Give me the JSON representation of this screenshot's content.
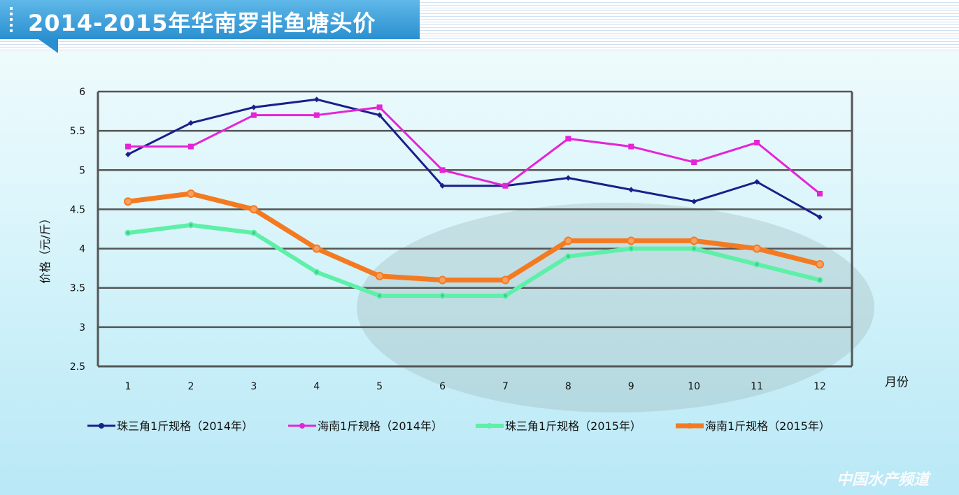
{
  "title": "2014-2015年华南罗非鱼塘头价",
  "watermark": {
    "name": "中国水产频道",
    "url": "www.fishfirst.cn"
  },
  "colors": {
    "s1": "#1a1f8a",
    "s2": "#e524d6",
    "s3": "#5ef0a8",
    "s4": "#f47a22"
  },
  "chart_data": {
    "type": "line",
    "title": "2014-2015年华南罗非鱼塘头价",
    "xlabel": "月份",
    "ylabel": "价格（元/斤）",
    "categories": [
      "1",
      "2",
      "3",
      "4",
      "5",
      "6",
      "7",
      "8",
      "9",
      "10",
      "11",
      "12"
    ],
    "ylim": [
      2.5,
      6
    ],
    "yticks": [
      "2.5",
      "3",
      "3.5",
      "4",
      "4.5",
      "5",
      "5.5",
      "6"
    ],
    "grid": true,
    "legend": "bottom",
    "series": [
      {
        "name": "珠三角1斤规格（2014年）",
        "values": [
          5.2,
          5.6,
          5.8,
          5.9,
          5.7,
          4.8,
          4.8,
          4.9,
          4.75,
          4.6,
          4.85,
          4.4
        ]
      },
      {
        "name": "海南1斤规格（2014年）",
        "values": [
          5.3,
          5.3,
          5.7,
          5.7,
          5.8,
          5.0,
          4.8,
          5.4,
          5.3,
          5.1,
          5.35,
          4.7
        ]
      },
      {
        "name": "珠三角1斤规格（2015年）",
        "values": [
          4.2,
          4.3,
          4.2,
          3.7,
          3.4,
          3.4,
          3.4,
          3.9,
          4.0,
          4.0,
          3.8,
          3.6
        ]
      },
      {
        "name": "海南1斤规格（2015年）",
        "values": [
          4.6,
          4.7,
          4.5,
          4.0,
          3.65,
          3.6,
          3.6,
          4.1,
          4.1,
          4.1,
          4.0,
          3.8
        ]
      }
    ]
  }
}
